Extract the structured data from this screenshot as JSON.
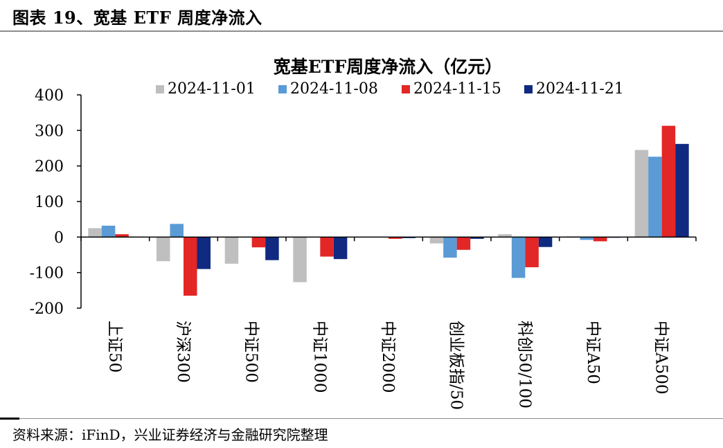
{
  "figure_caption": "图表 19、宽基 ETF 周度净流入",
  "source_note": "资料来源：iFinD，兴业证券经济与金融研究院整理",
  "chart_data": {
    "type": "bar",
    "title": "宽基ETF周度净流入（亿元）",
    "xlabel": "",
    "ylabel": "",
    "ylim": [
      -200,
      400
    ],
    "yticks": [
      -200,
      -100,
      0,
      100,
      200,
      300,
      400
    ],
    "grid": false,
    "legend_position": "top",
    "categories": [
      "上证50",
      "沪深300",
      "中证500",
      "中证1000",
      "中证2000",
      "创业板指/50",
      "科创50/100",
      "中证A50",
      "中证A500"
    ],
    "series": [
      {
        "name": "2024-11-01",
        "color": "#bfbfbf",
        "values": [
          25,
          -68,
          -75,
          -127,
          0,
          -18,
          8,
          2,
          245
        ]
      },
      {
        "name": "2024-11-08",
        "color": "#5b9bd5",
        "values": [
          32,
          37,
          0,
          0,
          0,
          -58,
          -115,
          -8,
          226
        ]
      },
      {
        "name": "2024-11-15",
        "color": "#e32626",
        "values": [
          8,
          -165,
          -29,
          -55,
          -5,
          -36,
          -85,
          -12,
          313
        ]
      },
      {
        "name": "2024-11-21",
        "color": "#0f2a80",
        "values": [
          1,
          -90,
          -65,
          -62,
          -3,
          -5,
          -28,
          -1,
          262
        ]
      }
    ]
  }
}
